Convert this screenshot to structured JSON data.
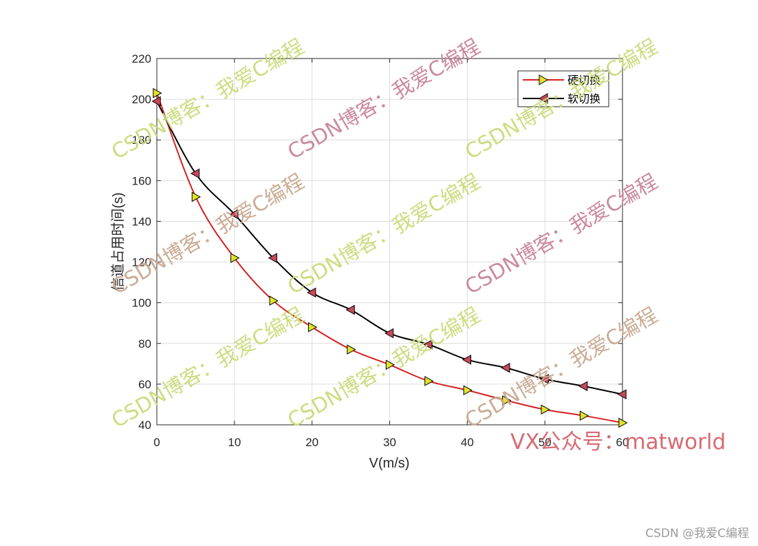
{
  "chart_data": {
    "type": "line",
    "title": "",
    "xlabel": "V(m/s)",
    "ylabel": "信道占用时间(s)",
    "xlim": [
      0,
      60
    ],
    "ylim": [
      40,
      220
    ],
    "xticks": [
      0,
      10,
      20,
      30,
      40,
      50,
      60
    ],
    "yticks": [
      40,
      60,
      80,
      100,
      120,
      140,
      160,
      180,
      200,
      220
    ],
    "grid": true,
    "legend_position": "top-right",
    "series": [
      {
        "name": "硬切换",
        "color": "#d42020",
        "marker": "triangle-right",
        "marker_color": "#e2e22a",
        "x": [
          0,
          5,
          10,
          15,
          20,
          25,
          30,
          35,
          40,
          45,
          50,
          55,
          60
        ],
        "y": [
          203,
          152,
          122,
          101,
          88,
          77,
          69.5,
          61.5,
          57,
          52,
          47.5,
          44.5,
          41
        ]
      },
      {
        "name": "软切换",
        "color": "#000000",
        "marker": "triangle-left",
        "marker_color": "#c8485a",
        "x": [
          0,
          5,
          10,
          15,
          20,
          25,
          30,
          35,
          40,
          45,
          50,
          55,
          60
        ],
        "y": [
          199,
          163.5,
          143.5,
          122,
          105,
          96.5,
          85,
          79.5,
          72,
          68,
          62.5,
          59,
          55
        ]
      }
    ]
  },
  "watermarks": {
    "blog_text": "CSDN博客：我爱C编程",
    "vx_text": "VX公众号：matworld",
    "colors": [
      "#c9db7a",
      "#c8849a",
      "#c8a890"
    ]
  },
  "credit": "CSDN @我爱C编程"
}
